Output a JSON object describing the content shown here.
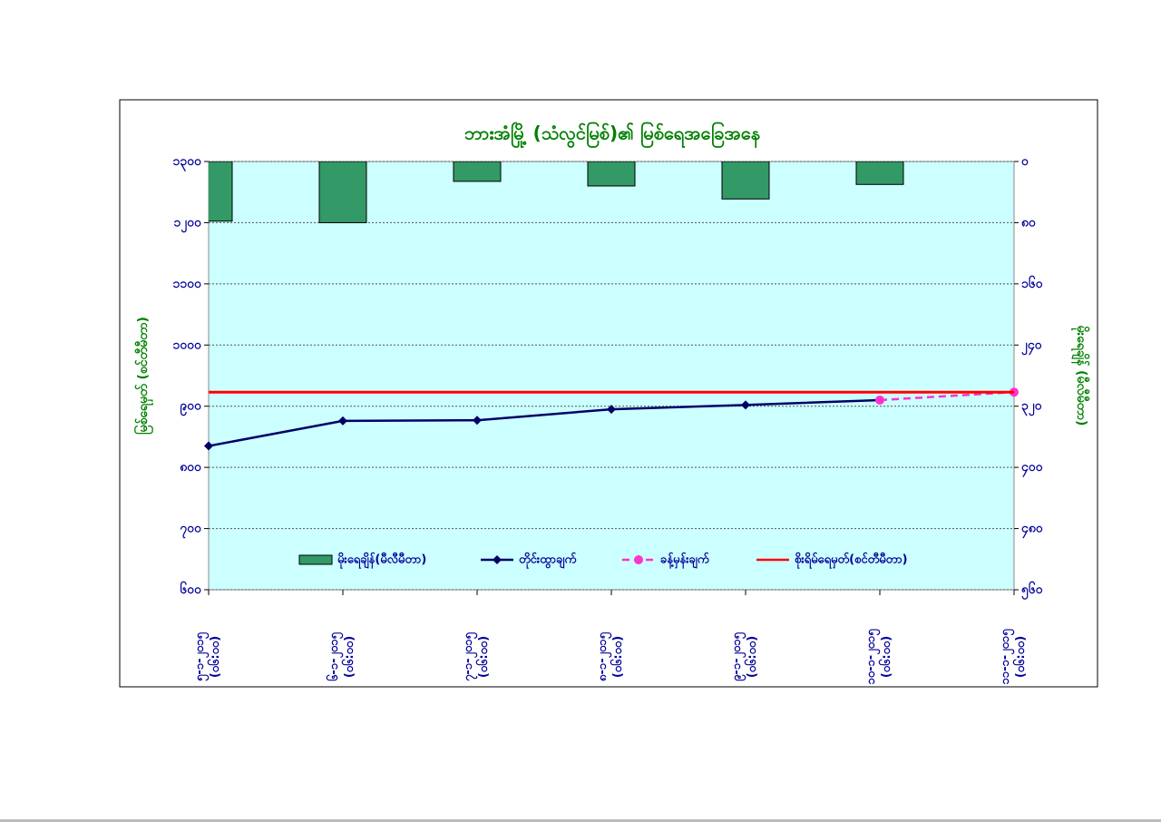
{
  "chart_data": {
    "type": "bar-line",
    "title": "ဘားအံမြို့ (သံလွင်မြစ်)၏ မြစ်ရေအခြေအနေ",
    "y_label": "မြစ်ရေမှတ် (စင်တီမီတာ)",
    "y2_label": "မိုးရေချိန် (မီလီမီတာ)",
    "categories": [
      "၅-၁-၂၀၁၅\n(၀၆:၀၀)",
      "၆-၁-၂၀၁၅\n(၀၆:၀၀)",
      "၇-၁-၂၀၁၅\n(၀၆:၀၀)",
      "၈-၁-၂၀၁၅\n(၀၆:၀၀)",
      "၉-၁-၂၀၁၅\n(၀၆:၀၀)",
      "၁၀-၁-၂၀၁၅\n(၀၆:၀၀)",
      "၁၁-၁-၂၀၁၅\n(၀၆:၀၀)"
    ],
    "ylim": [
      600,
      1300
    ],
    "yticks": [
      {
        "value": 1300,
        "label": "၁၃၀၀"
      },
      {
        "value": 1200,
        "label": "၁၂၀၀"
      },
      {
        "value": 1100,
        "label": "၁၁၀၀"
      },
      {
        "value": 1000,
        "label": "၁၀၀၀"
      },
      {
        "value": 900,
        "label": "၉၀၀"
      },
      {
        "value": 800,
        "label": "၈၀၀"
      },
      {
        "value": 700,
        "label": "၇၀၀"
      },
      {
        "value": 600,
        "label": "၆၀၀"
      }
    ],
    "y2lim": [
      0,
      560
    ],
    "y2_inverted": true,
    "y2ticks": [
      {
        "value": 0,
        "label": "၀"
      },
      {
        "value": 80,
        "label": "၈၀"
      },
      {
        "value": 160,
        "label": "၁၆၀"
      },
      {
        "value": 240,
        "label": "၂၄၀"
      },
      {
        "value": 320,
        "label": "၃၂၀"
      },
      {
        "value": 400,
        "label": "၄၀၀"
      },
      {
        "value": 480,
        "label": "၄၈၀"
      },
      {
        "value": 560,
        "label": "၅၆၀"
      }
    ],
    "grid": true,
    "series": [
      {
        "name": "မိုးရေချိန်(မီလီမီတာ)",
        "type": "bar",
        "axis": "y2",
        "color": "#339966",
        "values": [
          78,
          80,
          26,
          32,
          49,
          30,
          null
        ]
      },
      {
        "name": "တိုင်းထွာချက်",
        "type": "line",
        "marker": "diamond",
        "color": "#000066",
        "values": [
          835,
          876,
          877,
          895,
          902,
          910,
          null
        ]
      },
      {
        "name": "ခန့်မှန်းချက်",
        "type": "line",
        "marker": "circle",
        "dashed": true,
        "color": "#ff33cc",
        "values": [
          null,
          null,
          null,
          null,
          null,
          910,
          923
        ]
      },
      {
        "name": "စိုးရိမ်ရေမှတ်(စင်တီမီတာ)",
        "type": "line",
        "color": "#ff0000",
        "values": [
          923,
          923,
          923,
          923,
          923,
          923,
          923
        ]
      }
    ]
  }
}
